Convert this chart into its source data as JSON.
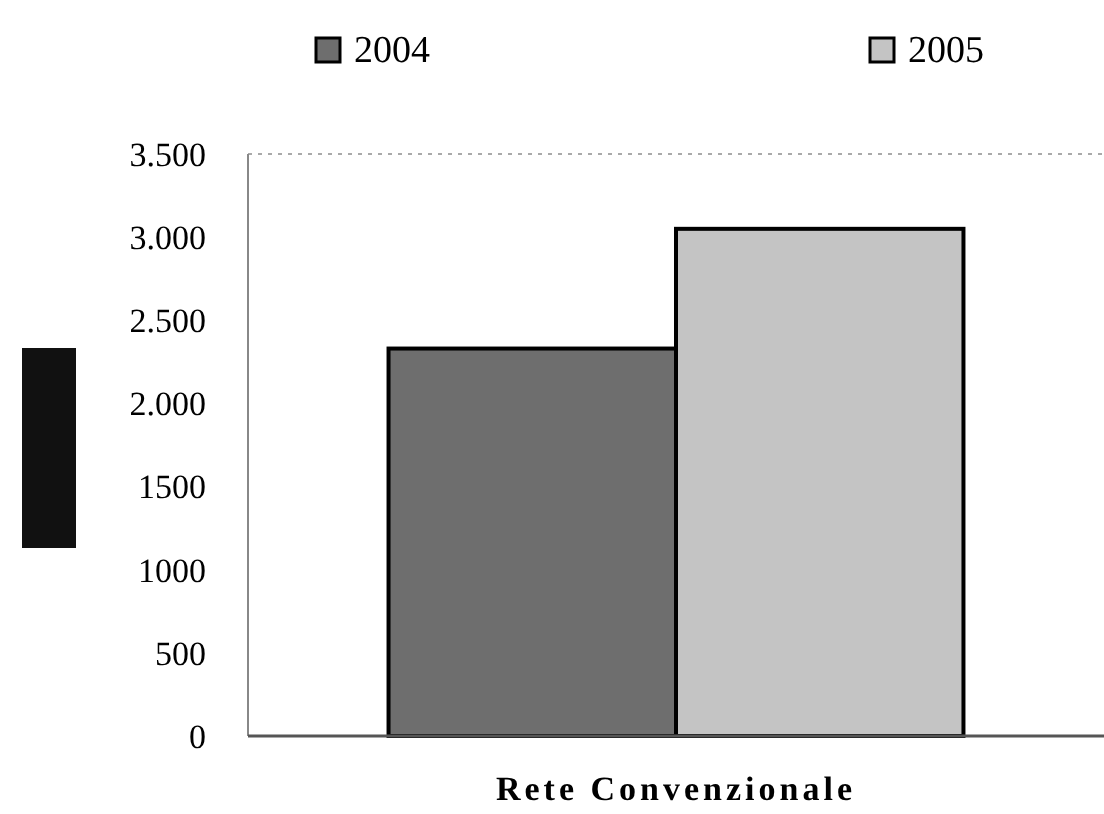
{
  "chart_data": {
    "type": "bar",
    "categories": [
      "Rete Convenzionale"
    ],
    "series": [
      {
        "name": "2004",
        "color": "#6e6e6e",
        "values": [
          2330
        ]
      },
      {
        "name": "2005",
        "color": "#c4c4c4",
        "values": [
          3050
        ]
      }
    ],
    "ylim": [
      0,
      3500
    ],
    "yticks": [
      0,
      500,
      {
        "value": 1000,
        "label": "1000"
      },
      {
        "value": 1500,
        "label": "1500"
      },
      {
        "value": 2000,
        "label": "2.000"
      },
      {
        "value": 2500,
        "label": "2.500"
      },
      {
        "value": 3000,
        "label": "3.000"
      },
      {
        "value": 3500,
        "label": "3.500"
      }
    ],
    "legend": "top",
    "grid": false
  }
}
